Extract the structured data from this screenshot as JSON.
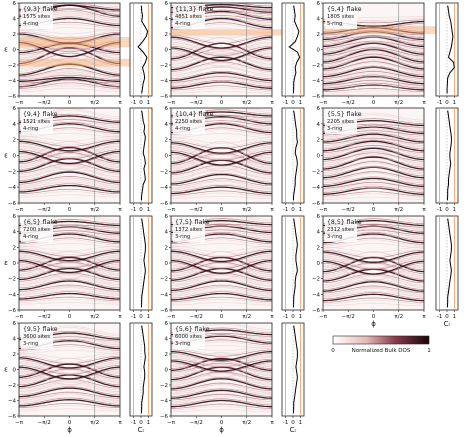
{
  "chart_data": [
    {
      "type": "heatmap",
      "title": "{9,3} flake",
      "sites": "1575 sites",
      "ring": "4-ring",
      "ylabel": "ε",
      "xlabel": "",
      "x_ticks": [
        "−π",
        "−π/2",
        "0",
        "π/2",
        "π"
      ],
      "y_ticks": [
        "6",
        "4",
        "2",
        "0",
        "−2",
        "−4",
        "−6"
      ],
      "ylim": [
        -6,
        6
      ],
      "xlim": [
        "−π",
        "π"
      ],
      "bands": [
        {
          "e": -4.8,
          "amp": 1.0
        },
        {
          "e": -4.1,
          "amp": 0.5
        },
        {
          "e": -3.3,
          "amp": 1.4
        },
        {
          "e": -1.8,
          "amp": 2.0
        },
        {
          "e": -0.4,
          "amp": 1.2
        },
        {
          "e": 0.9,
          "amp": -1.8
        },
        {
          "e": 2.0,
          "amp": -1.2
        },
        {
          "e": 3.1,
          "amp": 0.9
        },
        {
          "e": 4.3,
          "amp": 1.4
        },
        {
          "e": 5.1,
          "amp": 0.6
        }
      ],
      "dos_xlabel": "",
      "dos_ticks": [
        "-1",
        "0",
        "1"
      ],
      "dos_profile": [
        0.05,
        0.1,
        0.2,
        0.1,
        0.5,
        0.9,
        0.7,
        0.2,
        -0.4,
        0.3,
        0.8,
        0.6,
        0.2,
        0.4,
        0.5,
        0.3,
        0.2,
        0.1
      ],
      "highlight_bands": [
        [
          0.3,
          1.6
        ],
        [
          -2.2,
          -1.2
        ]
      ]
    },
    {
      "type": "heatmap",
      "title": "{11,3} flake",
      "sites": "4851 sites",
      "ring": "4-ring",
      "ylabel": "",
      "xlabel": "",
      "x_ticks": [
        "−π",
        "−π/2",
        "0",
        "π/2",
        "π"
      ],
      "y_ticks": [
        "6",
        "4",
        "2",
        "0",
        "−2",
        "−4",
        "−6"
      ],
      "ylim": [
        -6,
        6
      ],
      "xlim": [
        "−π",
        "π"
      ],
      "bands": [
        {
          "e": -5.0,
          "amp": 0.8
        },
        {
          "e": -4.0,
          "amp": 1.0
        },
        {
          "e": -2.6,
          "amp": 1.6
        },
        {
          "e": -1.2,
          "amp": 2.0
        },
        {
          "e": 0.2,
          "amp": -1.6
        },
        {
          "e": 1.6,
          "amp": -1.4
        },
        {
          "e": 2.8,
          "amp": 1.2
        },
        {
          "e": 3.9,
          "amp": 1.0
        },
        {
          "e": 4.8,
          "amp": 0.7
        },
        {
          "e": 5.4,
          "amp": 0.4
        }
      ],
      "dos_xlabel": "",
      "dos_ticks": [
        "-1",
        "0",
        "1"
      ],
      "dos_profile": [
        0.1,
        0.2,
        0.3,
        0.2,
        0.5,
        0.8,
        0.6,
        0.3,
        -0.5,
        0.6,
        0.9,
        0.5,
        0.3,
        0.4,
        0.2,
        0.1,
        0.1,
        0.05
      ],
      "highlight_bands": [
        [
          1.8,
          2.6
        ]
      ]
    },
    {
      "type": "heatmap",
      "title": "{5,4} flake",
      "sites": "1805 sites",
      "ring": "5-ring",
      "ylabel": "",
      "xlabel": "",
      "x_ticks": [
        "−π",
        "−π/2",
        "0",
        "π/2",
        "π"
      ],
      "y_ticks": [
        "6",
        "4",
        "2",
        "0",
        "−2",
        "−4",
        "−6"
      ],
      "ylim": [
        -6,
        6
      ],
      "xlim": [
        "−π",
        "π"
      ],
      "bands": [
        {
          "e": -5.2,
          "amp": 0.6
        },
        {
          "e": -4.4,
          "amp": 0.9
        },
        {
          "e": -3.5,
          "amp": 1.2
        },
        {
          "e": -2.5,
          "amp": 1.5
        },
        {
          "e": -1.6,
          "amp": 1.6
        },
        {
          "e": -0.6,
          "amp": 1.4
        },
        {
          "e": 0.4,
          "amp": 1.2
        },
        {
          "e": 1.3,
          "amp": 1.0
        },
        {
          "e": 2.1,
          "amp": 0.7
        },
        {
          "e": 3.6,
          "amp": -0.6
        }
      ],
      "dos_xlabel": "",
      "dos_ticks": [
        "-1",
        "0",
        "1"
      ],
      "dos_profile": [
        0.1,
        0.2,
        0.3,
        0.5,
        0.6,
        0.7,
        0.8,
        0.7,
        0.6,
        0.4,
        0.2,
        0.9,
        1.0,
        0.4,
        0.1,
        0.05,
        0.02,
        0.01
      ],
      "highlight_bands": [
        [
          2.0,
          3.0
        ]
      ]
    },
    {
      "type": "heatmap",
      "title": "{9,4} flake",
      "sites": "1521 sites",
      "ring": "4-ring",
      "ylabel": "ε",
      "xlabel": "",
      "x_ticks": [
        "−π",
        "−π/2",
        "0",
        "π/2",
        "π"
      ],
      "y_ticks": [
        "6",
        "4",
        "2",
        "0",
        "−2",
        "−4",
        "−6"
      ],
      "ylim": [
        -6,
        6
      ],
      "xlim": [
        "−π",
        "π"
      ],
      "bands": [
        {
          "e": -4.6,
          "amp": 0.8
        },
        {
          "e": -3.4,
          "amp": 1.3
        },
        {
          "e": -2.0,
          "amp": 1.6
        },
        {
          "e": -0.8,
          "amp": 1.8
        },
        {
          "e": 0.5,
          "amp": -1.5
        },
        {
          "e": 1.8,
          "amp": -1.2
        },
        {
          "e": 3.0,
          "amp": 1.0
        },
        {
          "e": 4.2,
          "amp": 0.8
        }
      ],
      "dos_xlabel": "",
      "dos_ticks": [
        "-1",
        "0",
        "1"
      ],
      "dos_profile": [
        0.1,
        0.2,
        0.3,
        0.5,
        0.4,
        0.6,
        0.5,
        0.4,
        0.3,
        0.5,
        0.6,
        0.4,
        0.5,
        0.6,
        0.3,
        0.2,
        0.1,
        0.05
      ],
      "highlight_bands": []
    },
    {
      "type": "heatmap",
      "title": "{10,4} flake",
      "sites": "2250 sites",
      "ring": "4-ring",
      "ylabel": "",
      "xlabel": "",
      "x_ticks": [
        "−π",
        "−π/2",
        "0",
        "π/2",
        "π"
      ],
      "y_ticks": [
        "6",
        "4",
        "2",
        "0",
        "−2",
        "−4",
        "−6"
      ],
      "ylim": [
        -6,
        6
      ],
      "xlim": [
        "−π",
        "π"
      ],
      "bands": [
        {
          "e": -4.8,
          "amp": 0.8
        },
        {
          "e": -3.6,
          "amp": 1.2
        },
        {
          "e": -2.2,
          "amp": 1.6
        },
        {
          "e": -1.0,
          "amp": 2.0
        },
        {
          "e": 0.4,
          "amp": -1.6
        },
        {
          "e": 1.6,
          "amp": -1.3
        },
        {
          "e": 2.9,
          "amp": 1.1
        },
        {
          "e": 4.0,
          "amp": 0.9
        },
        {
          "e": 5.0,
          "amp": 0.5
        }
      ],
      "dos_xlabel": "",
      "dos_ticks": [
        "-1",
        "0",
        "1"
      ],
      "dos_profile": [
        0.1,
        0.2,
        0.3,
        0.4,
        0.5,
        0.5,
        0.6,
        0.4,
        0.3,
        0.5,
        0.6,
        0.5,
        0.4,
        0.3,
        0.3,
        0.2,
        0.1,
        0.05
      ],
      "highlight_bands": []
    },
    {
      "type": "heatmap",
      "title": "{5,5} flake",
      "sites": "2205 sites",
      "ring": "3-ring",
      "ylabel": "",
      "xlabel": "",
      "x_ticks": [
        "−π",
        "−π/2",
        "0",
        "π/2",
        "π"
      ],
      "y_ticks": [
        "6",
        "4",
        "2",
        "0",
        "−2",
        "−4",
        "−6"
      ],
      "ylim": [
        -6,
        6
      ],
      "xlim": [
        "−π",
        "π"
      ],
      "bands": [
        {
          "e": -4.9,
          "amp": 0.8
        },
        {
          "e": -3.9,
          "amp": 1.0
        },
        {
          "e": -2.8,
          "amp": 1.3
        },
        {
          "e": -1.7,
          "amp": 1.5
        },
        {
          "e": -0.5,
          "amp": 1.4
        },
        {
          "e": 0.6,
          "amp": 1.2
        },
        {
          "e": 1.7,
          "amp": 1.0
        },
        {
          "e": 2.8,
          "amp": 0.8
        },
        {
          "e": 3.8,
          "amp": 0.6
        }
      ],
      "dos_xlabel": "",
      "dos_ticks": [
        "-1",
        "0",
        "1"
      ],
      "dos_profile": [
        0.1,
        0.2,
        0.3,
        0.4,
        0.5,
        0.6,
        0.6,
        0.5,
        0.4,
        0.4,
        0.5,
        0.4,
        0.3,
        0.2,
        0.2,
        0.1,
        0.1,
        0.05
      ],
      "highlight_bands": []
    },
    {
      "type": "heatmap",
      "title": "{6,5} flake",
      "sites": "7200 sites",
      "ring": "4-ring",
      "ylabel": "ε",
      "xlabel": "",
      "x_ticks": [
        "−π",
        "−π/2",
        "0",
        "π/2",
        "π"
      ],
      "y_ticks": [
        "6",
        "4",
        "2",
        "0",
        "−2",
        "−4",
        "−6"
      ],
      "ylim": [
        -6,
        6
      ],
      "xlim": [
        "−π",
        "π"
      ],
      "bands": [
        {
          "e": -4.6,
          "amp": 0.7
        },
        {
          "e": -3.4,
          "amp": 1.1
        },
        {
          "e": -2.1,
          "amp": 1.4
        },
        {
          "e": -0.9,
          "amp": 1.6
        },
        {
          "e": 0.3,
          "amp": -1.5
        },
        {
          "e": 1.5,
          "amp": -1.2
        },
        {
          "e": 2.7,
          "amp": 1.0
        },
        {
          "e": 3.8,
          "amp": 0.8
        },
        {
          "e": 4.8,
          "amp": 0.5
        }
      ],
      "dos_xlabel": "",
      "dos_ticks": [
        "-1",
        "0",
        "1"
      ],
      "dos_profile": [
        0.1,
        0.2,
        0.3,
        0.4,
        0.5,
        0.6,
        0.6,
        0.5,
        0.4,
        0.5,
        0.6,
        0.5,
        0.4,
        0.3,
        0.2,
        0.1,
        0.1,
        0.05
      ],
      "highlight_bands": []
    },
    {
      "type": "heatmap",
      "title": "{7,5} flake",
      "sites": "1372 sites",
      "ring": "3-ring",
      "ylabel": "",
      "xlabel": "",
      "x_ticks": [
        "−π",
        "−π/2",
        "0",
        "π/2",
        "π"
      ],
      "y_ticks": [
        "6",
        "4",
        "2",
        "0",
        "−2",
        "−4",
        "−6"
      ],
      "ylim": [
        -6,
        6
      ],
      "xlim": [
        "−π",
        "π"
      ],
      "bands": [
        {
          "e": -4.7,
          "amp": 0.8
        },
        {
          "e": -3.5,
          "amp": 1.2
        },
        {
          "e": -2.2,
          "amp": 1.5
        },
        {
          "e": -1.0,
          "amp": 1.7
        },
        {
          "e": 0.3,
          "amp": -1.6
        },
        {
          "e": 1.5,
          "amp": -1.3
        },
        {
          "e": 2.7,
          "amp": 1.0
        },
        {
          "e": 3.9,
          "amp": 0.8
        },
        {
          "e": 4.9,
          "amp": 0.5
        }
      ],
      "dos_xlabel": "",
      "dos_ticks": [
        "-1",
        "0",
        "1"
      ],
      "dos_profile": [
        0.1,
        0.2,
        0.3,
        0.4,
        0.5,
        0.6,
        0.5,
        0.4,
        0.4,
        0.5,
        0.6,
        0.4,
        0.3,
        0.3,
        0.2,
        0.1,
        0.1,
        0.05
      ],
      "highlight_bands": []
    },
    {
      "type": "heatmap",
      "title": "{8,5} flake",
      "sites": "2312 sites",
      "ring": "3-ring",
      "ylabel": "",
      "xlabel": "ϕ",
      "x_ticks": [
        "−π",
        "−π/2",
        "0",
        "π/2",
        "π"
      ],
      "y_ticks": [
        "6",
        "4",
        "2",
        "0",
        "−2",
        "−4",
        "−6"
      ],
      "ylim": [
        -6,
        6
      ],
      "xlim": [
        "−π",
        "π"
      ],
      "bands": [
        {
          "e": -4.8,
          "amp": 0.8
        },
        {
          "e": -3.6,
          "amp": 1.2
        },
        {
          "e": -2.3,
          "amp": 1.5
        },
        {
          "e": -1.1,
          "amp": 1.8
        },
        {
          "e": 0.2,
          "amp": -1.6
        },
        {
          "e": 1.4,
          "amp": -1.3
        },
        {
          "e": 2.6,
          "amp": 1.1
        },
        {
          "e": 3.8,
          "amp": 0.9
        },
        {
          "e": 4.8,
          "amp": 0.6
        }
      ],
      "dos_xlabel": "Cᵣ",
      "dos_ticks": [
        "-1",
        "0",
        "1"
      ],
      "dos_profile": [
        0.1,
        0.2,
        0.3,
        0.4,
        0.5,
        0.6,
        0.6,
        0.5,
        0.4,
        0.5,
        0.6,
        0.5,
        0.4,
        0.3,
        0.2,
        0.1,
        0.1,
        0.05
      ],
      "highlight_bands": []
    },
    {
      "type": "heatmap",
      "title": "{9,5} flake",
      "sites": "3600 sites",
      "ring": "3-ring",
      "ylabel": "ε",
      "xlabel": "ϕ",
      "x_ticks": [
        "−π",
        "−π/2",
        "0",
        "π/2",
        "π"
      ],
      "y_ticks": [
        "6",
        "4",
        "2",
        "0",
        "−2",
        "−4",
        "−6"
      ],
      "ylim": [
        -6,
        6
      ],
      "xlim": [
        "−π",
        "π"
      ],
      "bands": [
        {
          "e": -4.7,
          "amp": 0.8
        },
        {
          "e": -3.5,
          "amp": 1.1
        },
        {
          "e": -2.2,
          "amp": 1.5
        },
        {
          "e": -1.0,
          "amp": 1.7
        },
        {
          "e": 0.3,
          "amp": -1.5
        },
        {
          "e": 1.5,
          "amp": -1.3
        },
        {
          "e": 2.7,
          "amp": 1.0
        },
        {
          "e": 3.9,
          "amp": 0.8
        }
      ],
      "dos_xlabel": "Cᵣ",
      "dos_ticks": [
        "-1",
        "0",
        "1"
      ],
      "dos_profile": [
        0.1,
        0.2,
        0.3,
        0.4,
        0.5,
        0.5,
        0.6,
        0.5,
        0.4,
        0.5,
        0.5,
        0.4,
        0.3,
        0.3,
        0.2,
        0.1,
        0.1,
        0.05
      ],
      "highlight_bands": []
    },
    {
      "type": "heatmap",
      "title": "{5,6} flake",
      "sites": "6000 sites",
      "ring": "3-ring",
      "ylabel": "",
      "xlabel": "ϕ",
      "x_ticks": [
        "−π",
        "−π/2",
        "0",
        "π/2",
        "π"
      ],
      "y_ticks": [
        "6",
        "4",
        "2",
        "0",
        "−2",
        "−4",
        "−6"
      ],
      "ylim": [
        -6,
        6
      ],
      "xlim": [
        "−π",
        "π"
      ],
      "bands": [
        {
          "e": -4.8,
          "amp": 0.8
        },
        {
          "e": -3.7,
          "amp": 1.0
        },
        {
          "e": -2.5,
          "amp": 1.3
        },
        {
          "e": -1.3,
          "amp": 1.6
        },
        {
          "e": -0.1,
          "amp": 1.5
        },
        {
          "e": 1.1,
          "amp": -1.3
        },
        {
          "e": 2.3,
          "amp": -1.1
        },
        {
          "e": 3.4,
          "amp": 0.9
        },
        {
          "e": 4.5,
          "amp": 0.6
        }
      ],
      "dos_xlabel": "Cᵣ",
      "dos_ticks": [
        "-1",
        "0",
        "1"
      ],
      "dos_profile": [
        0.1,
        0.2,
        0.3,
        0.4,
        0.5,
        0.6,
        0.6,
        0.5,
        0.4,
        0.5,
        0.6,
        0.5,
        0.4,
        0.3,
        0.2,
        0.1,
        0.1,
        0.05
      ],
      "highlight_bands": []
    }
  ],
  "colorbar": {
    "label": "Normalized Bulk DOS",
    "min_label": "0",
    "max_label": "1"
  },
  "colors": {
    "band_dark": "#2a0a12",
    "band_mid": "#8a3a4a",
    "band_light": "#e8c8c8",
    "orange_line": "#f08a3c",
    "highlight": "#f7b078"
  }
}
